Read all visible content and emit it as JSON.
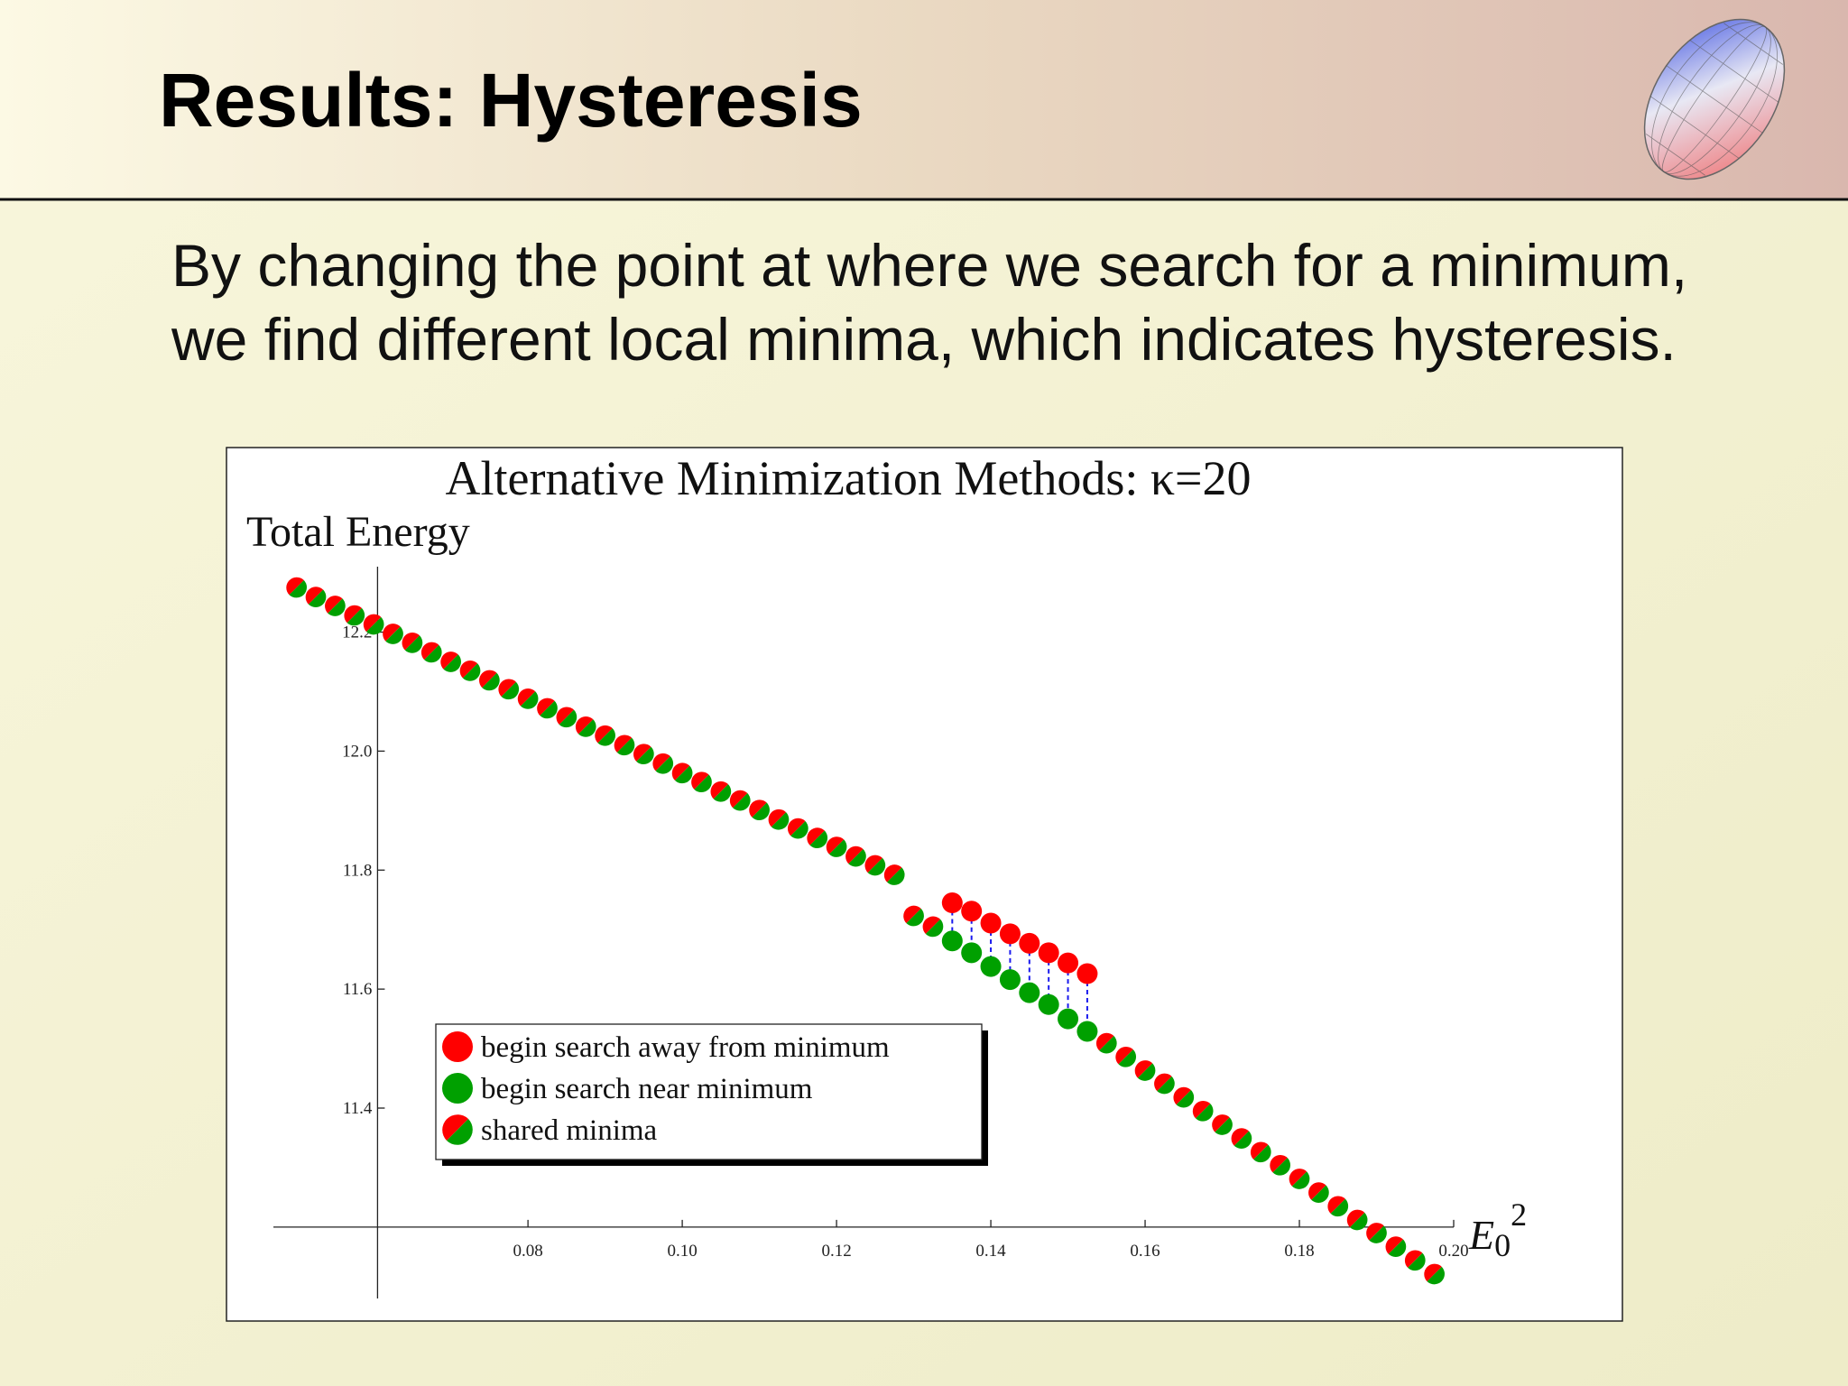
{
  "slide": {
    "title": "Results: Hysteresis",
    "body": [
      "By changing the point at where we search for a minimum,",
      "we find different local minima, which indicates hysteresis."
    ]
  },
  "chart_data": {
    "type": "scatter",
    "title": "Alternative Minimization Methods: κ=20",
    "ylabel": "Total Energy",
    "xlabel": {
      "base": "E",
      "subscript": "0",
      "superscript": "2"
    },
    "xlim": [
      0.047,
      0.2
    ],
    "ylim": [
      11.08,
      12.31
    ],
    "axes_origin": {
      "x": 0.0605,
      "y": 11.2
    },
    "xticks": [
      0.08,
      {
        "value": 0.1,
        "label": "0.10"
      },
      0.12,
      0.14,
      0.16,
      0.18,
      {
        "value": 0.2,
        "label": "0.20"
      }
    ],
    "yticks": [
      11.4,
      11.6,
      11.8,
      {
        "value": 12.0,
        "label": "12.0"
      },
      12.2
    ],
    "legend": "lower left",
    "connector_color": "#1a1aee",
    "series": [
      {
        "name": "begin search away from minimum",
        "color": "#ff0000",
        "x": [
          0.135,
          0.1375,
          0.14,
          0.1425,
          0.145,
          0.1475,
          0.15,
          0.1525
        ],
        "y": [
          11.745,
          11.731,
          11.711,
          11.693,
          11.677,
          11.661,
          11.644,
          11.626
        ]
      },
      {
        "name": "begin search near minimum",
        "color": "#00a000",
        "x": [
          0.135,
          0.1375,
          0.14,
          0.1425,
          0.145,
          0.1475,
          0.15,
          0.1525
        ],
        "y": [
          11.681,
          11.661,
          11.638,
          11.616,
          11.594,
          11.574,
          11.55,
          11.529
        ]
      },
      {
        "name": "shared minima",
        "color": [
          "#ff0000",
          "#00a000"
        ],
        "x": [
          0.05,
          0.0525,
          0.055,
          0.0575,
          0.06,
          0.0625,
          0.065,
          0.0675,
          0.07,
          0.0725,
          0.075,
          0.0775,
          0.08,
          0.0825,
          0.085,
          0.0875,
          0.09,
          0.0925,
          0.095,
          0.0975,
          0.1,
          0.1025,
          0.105,
          0.1075,
          0.11,
          0.1125,
          0.115,
          0.1175,
          0.12,
          0.1225,
          0.125,
          0.1275,
          0.13,
          0.1325,
          0.155,
          0.1575,
          0.16,
          0.1625,
          0.165,
          0.1675,
          0.17,
          0.1725,
          0.175,
          0.1775,
          0.18,
          0.1825,
          0.185,
          0.1875,
          0.19,
          0.1925,
          0.195,
          0.1975
        ],
        "y": [
          12.275,
          12.259,
          12.244,
          12.228,
          12.213,
          12.197,
          12.182,
          12.166,
          12.15,
          12.135,
          12.119,
          12.104,
          12.088,
          12.072,
          12.057,
          12.041,
          12.026,
          12.01,
          11.995,
          11.979,
          11.963,
          11.948,
          11.932,
          11.917,
          11.901,
          11.885,
          11.87,
          11.854,
          11.839,
          11.823,
          11.808,
          11.792,
          11.723,
          11.705,
          11.509,
          11.486,
          11.463,
          11.441,
          11.418,
          11.395,
          11.372,
          11.349,
          11.326,
          11.304,
          11.281,
          11.258,
          11.235,
          11.212,
          11.19,
          11.167,
          11.144,
          11.121
        ]
      }
    ]
  }
}
